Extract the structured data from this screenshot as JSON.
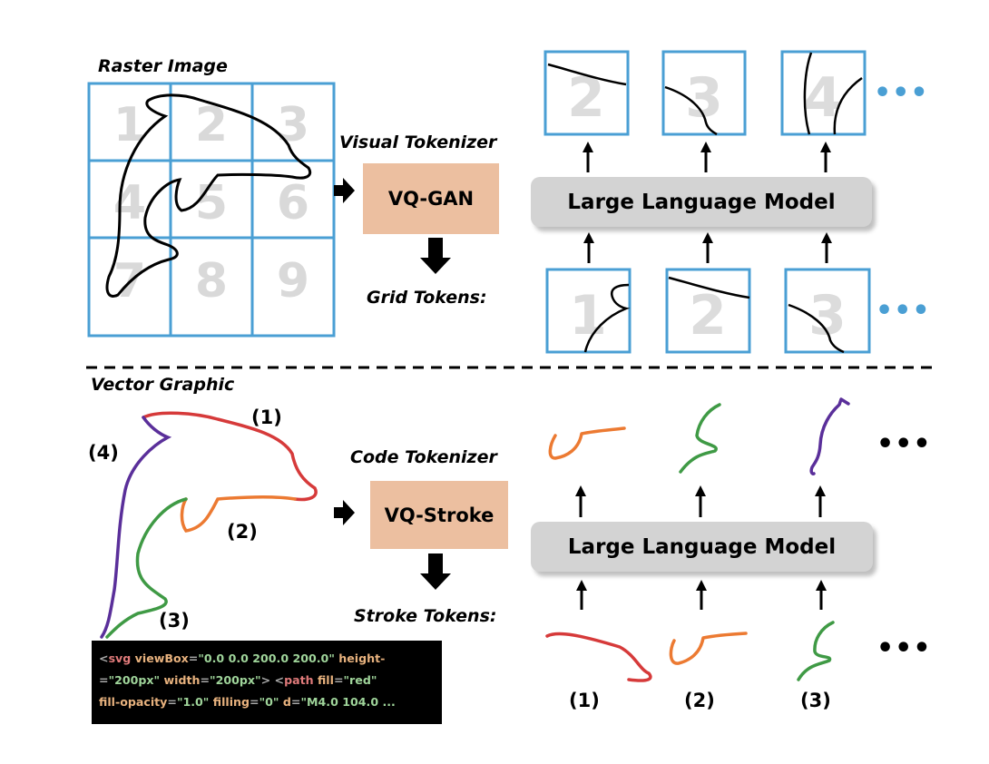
{
  "raster": {
    "title": "Raster Image",
    "grid_numbers": [
      "1",
      "2",
      "3",
      "4",
      "5",
      "6",
      "7",
      "8",
      "9"
    ]
  },
  "visual_tokenizer": {
    "label": "Visual Tokenizer",
    "box": "VQ-GAN",
    "output_label": "Grid Tokens:"
  },
  "llm_label": "Large Language Model",
  "grid_tokens": {
    "output": [
      "2",
      "3",
      "4"
    ],
    "input": [
      "1",
      "2",
      "3"
    ],
    "ellipsis": "•••"
  },
  "vector": {
    "title": "Vector Graphic",
    "stroke_labels": [
      "(1)",
      "(2)",
      "(3)",
      "(4)"
    ]
  },
  "code_tokenizer": {
    "label": "Code Tokenizer",
    "box": "VQ-Stroke",
    "output_label": "Stroke Tokens:"
  },
  "stroke_tokens": {
    "input_labels": [
      "(1)",
      "(2)",
      "(3)"
    ],
    "ellipsis": "•••"
  },
  "code": {
    "line1": [
      {
        "c": "p",
        "t": "<"
      },
      {
        "c": "t",
        "t": "svg "
      },
      {
        "c": "a",
        "t": "viewBox"
      },
      {
        "c": "p",
        "t": "="
      },
      {
        "c": "v",
        "t": "\"0.0 0.0 200.0 200.0\" "
      },
      {
        "c": "a",
        "t": "height-"
      }
    ],
    "line2": [
      {
        "c": "p",
        "t": "="
      },
      {
        "c": "v",
        "t": "\"200px\" "
      },
      {
        "c": "a",
        "t": "width"
      },
      {
        "c": "p",
        "t": "="
      },
      {
        "c": "v",
        "t": "\"200px\""
      },
      {
        "c": "p",
        "t": "> <"
      },
      {
        "c": "t",
        "t": "path "
      },
      {
        "c": "a",
        "t": "fill"
      },
      {
        "c": "p",
        "t": "="
      },
      {
        "c": "v",
        "t": "\"red\""
      }
    ],
    "line3": [
      {
        "c": "a",
        "t": "fill-opacity"
      },
      {
        "c": "p",
        "t": "="
      },
      {
        "c": "v",
        "t": "\"1.0\" "
      },
      {
        "c": "a",
        "t": "filling"
      },
      {
        "c": "p",
        "t": "="
      },
      {
        "c": "v",
        "t": "\"0\" "
      },
      {
        "c": "a",
        "t": "d"
      },
      {
        "c": "p",
        "t": "="
      },
      {
        "c": "v",
        "t": "\"M4.0 104.0 ..."
      }
    ]
  },
  "colors": {
    "grid": "#4a9fd4",
    "tokenizer": "#ecbfa0",
    "llm": "#d3d3d3",
    "stroke1": "#d63a3a",
    "stroke2": "#ec7a32",
    "stroke3": "#3f9a45",
    "stroke4": "#5a2f9a"
  }
}
